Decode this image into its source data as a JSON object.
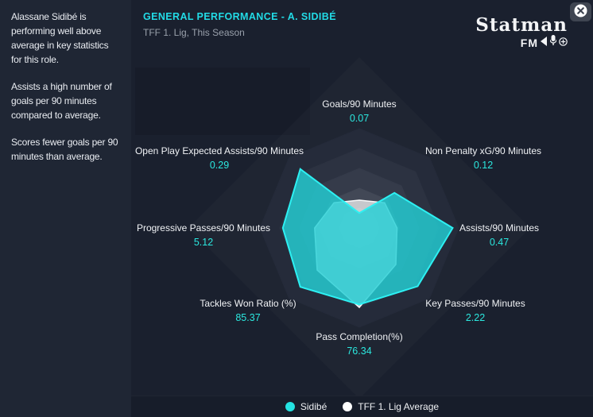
{
  "sidebar": {
    "paragraphs": [
      "Alassane Sidibé is performing well above average in key statistics for this role.",
      "Assists a high number of goals per 90 minutes compared to average.",
      "Scores fewer goals per 90 minutes than average."
    ]
  },
  "header": {
    "title": "GENERAL PERFORMANCE - A. SIDIBÉ",
    "subtitle": "TFF 1. Lig, This Season"
  },
  "logo": {
    "text": "Statman",
    "sub": "FM"
  },
  "colors": {
    "accent_cyan": "#22dbe6",
    "value_cyan": "#2be8df",
    "sidebar_bg": "#1f2634",
    "main_bg": "#1a202e"
  },
  "chart_data": {
    "type": "radar",
    "title": "GENERAL PERFORMANCE - A. SIDIBÉ",
    "categories": [
      "Goals/90 Minutes",
      "Non Penalty xG/90 Minutes",
      "Assists/90 Minutes",
      "Key Passes/90 Minutes",
      "Pass Completion(%)",
      "Tackles Won Ratio (%)",
      "Progressive Passes/90 Minutes",
      "Open Play Expected Assists/90 Minutes"
    ],
    "series": [
      {
        "name": "Sidibé",
        "color": "#23d0d6",
        "stroke": "#2df0f2",
        "fill_opacity": 0.82,
        "display_values": [
          "0.07",
          "0.12",
          "0.47",
          "2.22",
          "76.34",
          "85.37",
          "5.12",
          "0.29"
        ],
        "radius_fraction": [
          0.15,
          0.5,
          0.94,
          0.83,
          0.77,
          0.84,
          0.77,
          0.84
        ]
      },
      {
        "name": "TFF 1. Lig Average",
        "color": "#ffffff",
        "stroke": "#ffffff",
        "fill_opacity": 0.7,
        "display_values": null,
        "radius_fraction": [
          0.28,
          0.36,
          0.38,
          0.52,
          0.8,
          0.6,
          0.45,
          0.36
        ]
      }
    ],
    "ring_levels": [
      1.0,
      0.8,
      0.6,
      0.4,
      0.2
    ],
    "ring_colors": [
      "#252b3a",
      "#2c3241",
      "#353b4a",
      "#424856",
      "#4f5462"
    ],
    "grid": "nested-octagons",
    "legend_position": "bottom"
  },
  "legend": {
    "items": [
      {
        "label": "Sidibé",
        "color": "#24e2e2"
      },
      {
        "label": "TFF 1. Lig Average",
        "color": "#ffffff"
      }
    ]
  }
}
